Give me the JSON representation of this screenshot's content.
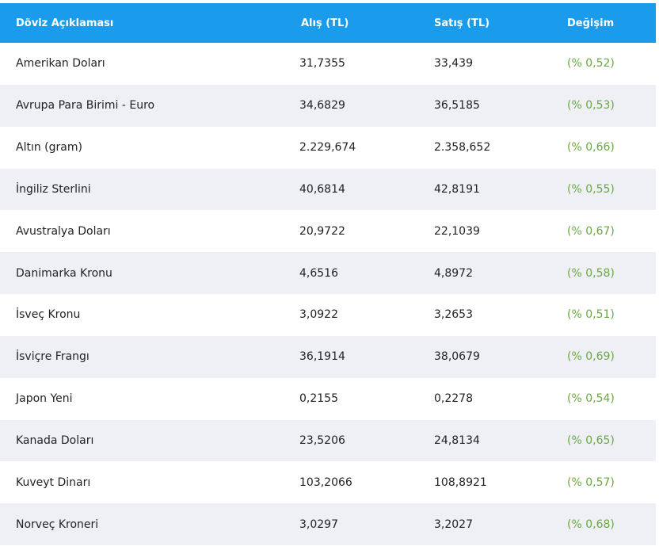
{
  "header": {
    "col_name": "Döviz Açıklaması",
    "col_buy": "Alış (TL)",
    "col_sell": "Satış (TL)",
    "col_change": "Değişim"
  },
  "rows": [
    {
      "name": "Amerikan Doları",
      "buy": "31,7355",
      "sell": "33,439",
      "change": "(% 0,52)"
    },
    {
      "name": "Avrupa Para Birimi - Euro",
      "buy": "34,6829",
      "sell": "36,5185",
      "change": "(% 0,53)"
    },
    {
      "name": "Altın (gram)",
      "buy": "2.229,674",
      "sell": "2.358,652",
      "change": "(% 0,66)"
    },
    {
      "name": "İngiliz Sterlini",
      "buy": "40,6814",
      "sell": "42,8191",
      "change": "(% 0,55)"
    },
    {
      "name": "Avustralya Doları",
      "buy": "20,9722",
      "sell": "22,1039",
      "change": "(% 0,67)"
    },
    {
      "name": "Danimarka Kronu",
      "buy": "4,6516",
      "sell": "4,8972",
      "change": "(% 0,58)"
    },
    {
      "name": "İsveç Kronu",
      "buy": "3,0922",
      "sell": "3,2653",
      "change": "(% 0,51)"
    },
    {
      "name": "İsviçre Frangı",
      "buy": "36,1914",
      "sell": "38,0679",
      "change": "(% 0,69)"
    },
    {
      "name": "Japon Yeni",
      "buy": "0,2155",
      "sell": "0,2278",
      "change": "(% 0,54)"
    },
    {
      "name": "Kanada Doları",
      "buy": "23,5206",
      "sell": "24,8134",
      "change": "(% 0,65)"
    },
    {
      "name": "Kuveyt Dinarı",
      "buy": "103,2066",
      "sell": "108,8921",
      "change": "(% 0,57)"
    },
    {
      "name": "Norveç Kroneri",
      "buy": "3,0297",
      "sell": "3,2027",
      "change": "(% 0,68)"
    }
  ]
}
